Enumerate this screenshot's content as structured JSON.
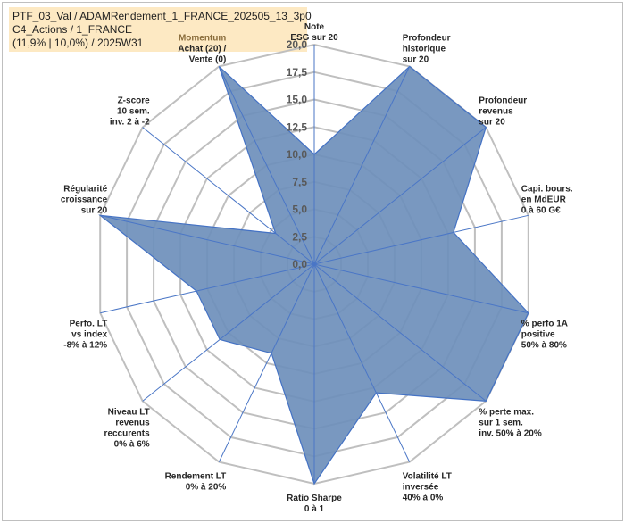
{
  "title": {
    "line1": "PTF_03_Val / ADAMRendement_1_FRANCE_202505_13_3p0",
    "line2": "C4_Actions / 1_FRANCE",
    "line3": "(11,9% | 10,0%) / 2025W31"
  },
  "chart_data": {
    "type": "radar",
    "rmin": 0,
    "rmax": 20,
    "ticks": [
      "0,0",
      "2,5",
      "5,0",
      "7,5",
      "10,0",
      "12,5",
      "15,0",
      "17,5",
      "20,0"
    ],
    "axes": [
      {
        "label": [
          "Note",
          "ESG sur 20"
        ],
        "value": 10
      },
      {
        "label": [
          "Profondeur",
          "historique",
          "sur 20"
        ],
        "value": 20
      },
      {
        "label": [
          "Profondeur",
          "revenus",
          "sur 20"
        ],
        "value": 20
      },
      {
        "label": [
          "Capi. bours.",
          "en MdEUR",
          "0 à 60 G€"
        ],
        "value": 13
      },
      {
        "label": [
          "% perfo 1A",
          "positive",
          "50% à 80%"
        ],
        "value": 20
      },
      {
        "label": [
          "% perte max.",
          "sur 1 sem.",
          "inv. 50% à 20%"
        ],
        "value": 20
      },
      {
        "label": [
          "Volatilité LT",
          "inversée",
          "40% à 0%"
        ],
        "value": 13
      },
      {
        "label": [
          "Ratio Sharpe",
          "0 à 1"
        ],
        "value": 20
      },
      {
        "label": [
          "Rendement LT",
          "0% à 20%"
        ],
        "value": 9
      },
      {
        "label": [
          "Niveau LT",
          "revenus",
          "reccurents",
          "0% à 6%"
        ],
        "value": 11
      },
      {
        "label": [
          "Perfo. LT",
          "vs index",
          "-8% à 12%"
        ],
        "value": 11
      },
      {
        "label": [
          "Régularité",
          "croissance",
          "sur 20"
        ],
        "value": 20
      },
      {
        "label": [
          "Z-score",
          "10 sem.",
          "inv. 2 à -2"
        ],
        "value": 4.5
      },
      {
        "label": [
          "Momentum",
          "Achat (20) /",
          "Vente (0)"
        ],
        "value": 20
      }
    ],
    "colors": {
      "fill": "#6e8fbb",
      "stroke": "#4472c4",
      "grid": "#bfbfbf",
      "spoke": "#4a76c6",
      "momentum_label": "#8a6d3b"
    }
  }
}
